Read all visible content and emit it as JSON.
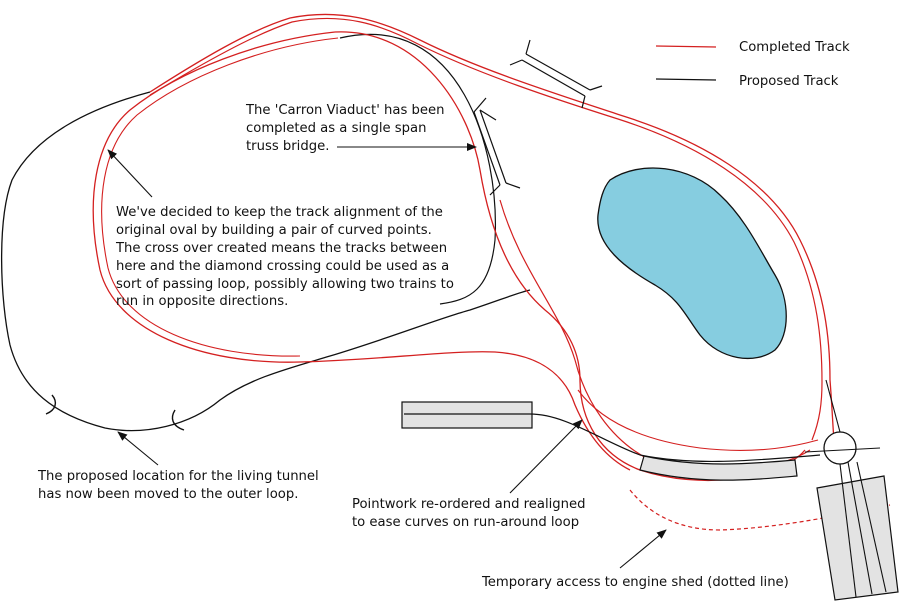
{
  "legend": {
    "completed_label": "Completed Track",
    "proposed_label": "Proposed Track",
    "completed_color": "#d42020",
    "proposed_color": "#111111"
  },
  "annotations": {
    "viaduct_line1": "The 'Carron Viaduct' has been",
    "viaduct_line2": "completed as a single span",
    "viaduct_line3": "truss bridge.",
    "points_line1": "We've decided to keep the track alignment of the",
    "points_line2": "original oval by building a pair of curved points.",
    "points_line3": "The cross over created means the tracks between",
    "points_line4": "here and the diamond crossing could be used as a",
    "points_line5": "sort of passing loop, possibly allowing two trains to",
    "points_line6": "run in opposite directions.",
    "tunnel_line1": "The proposed location for the living tunnel",
    "tunnel_line2": "has now been moved to the outer loop.",
    "pointwork_line1": "Pointwork re-ordered and realigned",
    "pointwork_line2": "to ease curves on run-around loop",
    "shed_line1": "Temporary access to engine shed (dotted line)"
  },
  "colors": {
    "pond_fill": "#86cde0",
    "building_fill": "#e3e3e3"
  }
}
